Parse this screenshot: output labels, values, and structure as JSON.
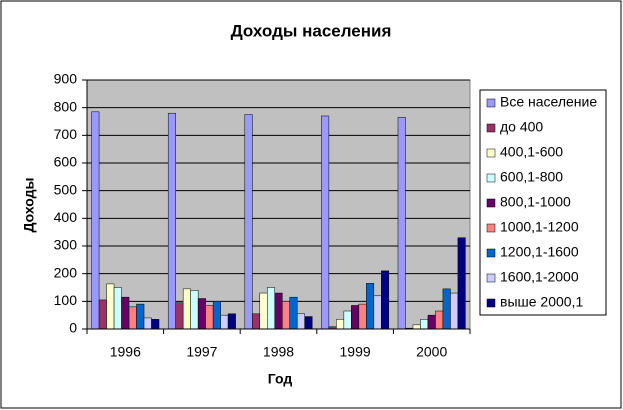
{
  "chart_data": {
    "type": "bar",
    "title": "Доходы населения",
    "xlabel": "Год",
    "ylabel": "Доходы",
    "categories": [
      "1996",
      "1997",
      "1998",
      "1999",
      "2000"
    ],
    "series": [
      {
        "name": "Все население",
        "color": "#9999ff",
        "values": [
          785,
          780,
          775,
          770,
          765
        ]
      },
      {
        "name": "до 400",
        "color": "#993366",
        "values": [
          105,
          95,
          55,
          8,
          3
        ]
      },
      {
        "name": "400,1-600",
        "color": "#ffffcc",
        "values": [
          163,
          145,
          130,
          35,
          15
        ]
      },
      {
        "name": "600,1-800",
        "color": "#ccffff",
        "values": [
          150,
          140,
          150,
          65,
          35
        ]
      },
      {
        "name": "800,1-1000",
        "color": "#660066",
        "values": [
          115,
          110,
          130,
          85,
          50
        ]
      },
      {
        "name": "1000,1-1200",
        "color": "#ff8080",
        "values": [
          80,
          85,
          100,
          90,
          65
        ]
      },
      {
        "name": "1200,1-1600",
        "color": "#0066cc",
        "values": [
          90,
          100,
          115,
          165,
          145
        ]
      },
      {
        "name": "1600,1-2000",
        "color": "#ccccff",
        "values": [
          40,
          50,
          55,
          120,
          130
        ]
      },
      {
        "name": "выше 2000,1",
        "color": "#000080",
        "values": [
          35,
          55,
          45,
          210,
          330
        ]
      }
    ],
    "ylim": [
      0,
      900
    ],
    "yticks": [
      0,
      100,
      200,
      300,
      400,
      500,
      600,
      700,
      800,
      900
    ],
    "grid": true,
    "legend": "right"
  }
}
